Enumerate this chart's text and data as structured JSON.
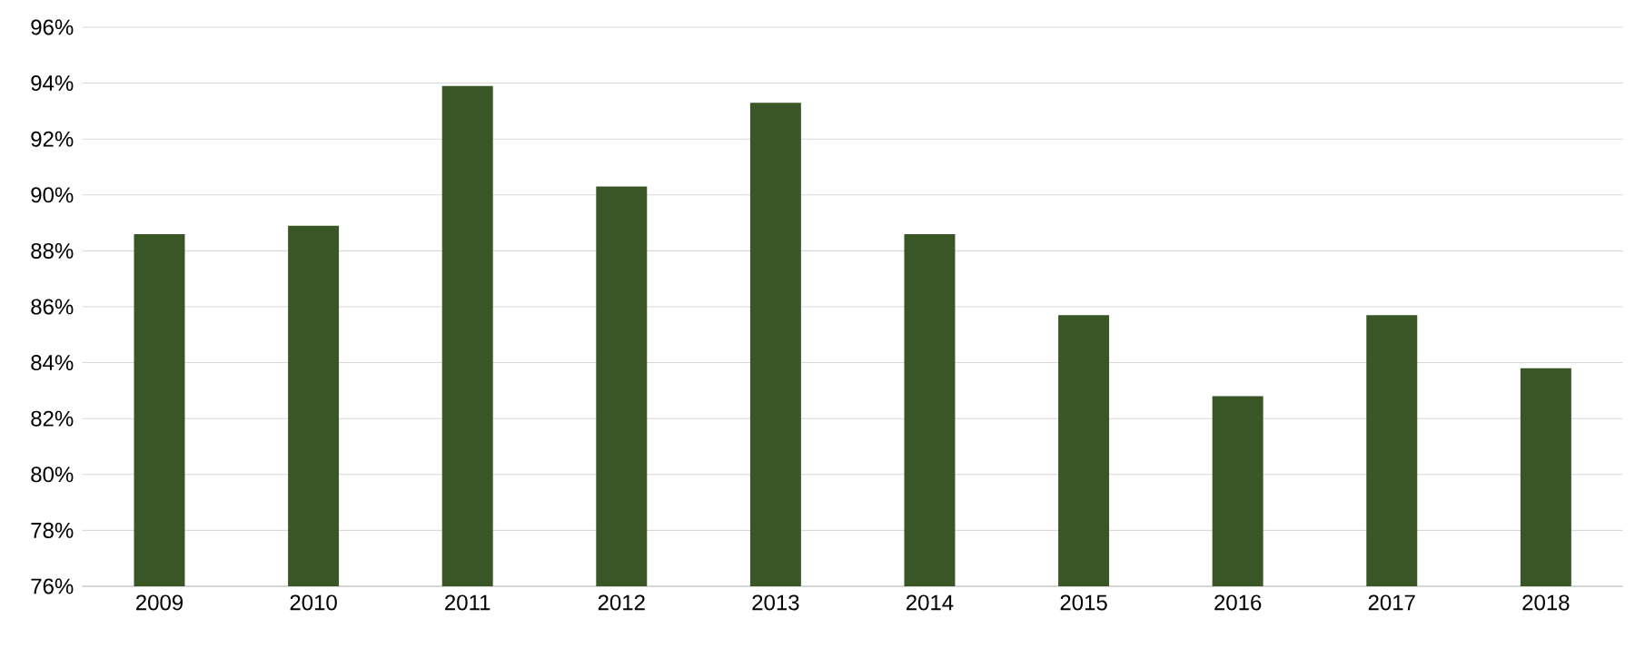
{
  "chart_data": {
    "type": "bar",
    "categories": [
      "2009",
      "2010",
      "2011",
      "2012",
      "2013",
      "2014",
      "2015",
      "2016",
      "2017",
      "2018"
    ],
    "values": [
      88.6,
      88.9,
      93.9,
      90.3,
      93.3,
      88.6,
      85.7,
      82.8,
      85.7,
      83.8
    ],
    "color": "#3a5526",
    "ylim": [
      76,
      96
    ],
    "yticks": [
      {
        "value": 76,
        "label": "76%"
      },
      {
        "value": 78,
        "label": "78%"
      },
      {
        "value": 80,
        "label": "80%"
      },
      {
        "value": 82,
        "label": "82%"
      },
      {
        "value": 84,
        "label": "84%"
      },
      {
        "value": 86,
        "label": "86%"
      },
      {
        "value": 88,
        "label": "88%"
      },
      {
        "value": 90,
        "label": "90%"
      },
      {
        "value": 92,
        "label": "92%"
      },
      {
        "value": 94,
        "label": "94%"
      },
      {
        "value": 96,
        "label": "96%"
      }
    ],
    "grid": "y"
  }
}
